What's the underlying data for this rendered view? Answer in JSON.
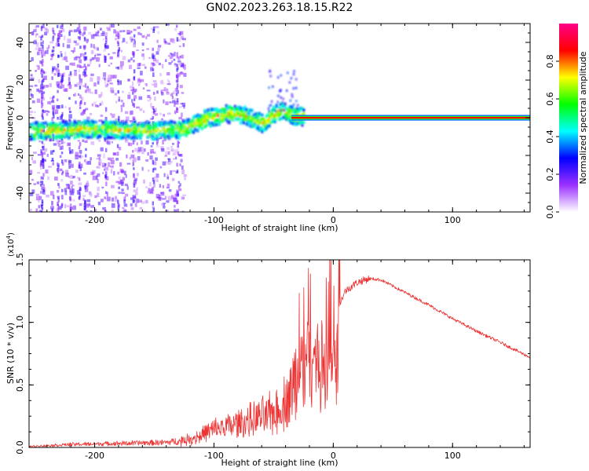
{
  "figure_title": "GN02.2023.263.18.15.R22",
  "chart_data": [
    {
      "type": "heatmap",
      "title": "GN02.2023.263.18.15.R22",
      "xlabel": "Height of straight line (km)",
      "ylabel": "Frequency (Hz)",
      "xlim": [
        -255,
        165
      ],
      "ylim": [
        -50,
        50
      ],
      "x_ticks": [
        -200,
        -100,
        0,
        100
      ],
      "x_tick_labels": [
        "-200",
        "-100",
        "0",
        "100"
      ],
      "y_ticks": [
        -40,
        -20,
        0,
        20,
        40
      ],
      "y_tick_labels": [
        "-40",
        "-20",
        "0",
        "20",
        "40"
      ],
      "colorbar": {
        "label": "Normalized spectral amplitude",
        "range": [
          0,
          1
        ],
        "ticks": [
          0.0,
          0.2,
          0.4,
          0.6,
          0.8
        ],
        "tick_labels": [
          "0.0",
          "0.2",
          "0.4",
          "0.6",
          "0.8"
        ],
        "colors": [
          "#ffffff",
          "#9b30ff",
          "#0000ff",
          "#00ffff",
          "#00ff00",
          "#ffff00",
          "#ff0000",
          "#ff0088"
        ]
      },
      "ridge": {
        "x": [
          -255,
          -200,
          -150,
          -125,
          -110,
          -90,
          -75,
          -60,
          -45,
          -35,
          -20,
          0,
          165
        ],
        "frequency_hz": [
          -7,
          -6,
          -7,
          -6,
          -1,
          2,
          1,
          -3,
          4,
          1,
          0,
          0,
          0
        ]
      }
    },
    {
      "type": "line",
      "title": "",
      "xlabel": "Height of straight line (km)",
      "ylabel": "SNR (10 * v/v)",
      "scale_label": "(x10",
      "scale_exponent": "4",
      "scale_suffix": ")",
      "xlim": [
        -255,
        165
      ],
      "ylim": [
        0,
        1.5
      ],
      "x_ticks": [
        -200,
        -100,
        0,
        100
      ],
      "x_tick_labels": [
        "-200",
        "-100",
        "0",
        "100"
      ],
      "y_ticks": [
        0.0,
        0.5,
        1.0,
        1.5
      ],
      "y_tick_labels": [
        "0.0",
        "0.5",
        "1.0",
        "1.5"
      ],
      "series": [
        {
          "name": "SNR",
          "color": "#ee3333",
          "x": [
            -255,
            -220,
            -180,
            -140,
            -120,
            -100,
            -85,
            -70,
            -55,
            -45,
            -35,
            -28,
            -22,
            -16,
            -10,
            -5,
            0,
            5,
            10,
            20,
            30,
            40,
            60,
            80,
            100,
            120,
            140,
            165
          ],
          "y": [
            0.01,
            0.03,
            0.04,
            0.05,
            0.08,
            0.18,
            0.22,
            0.27,
            0.32,
            0.38,
            0.55,
            0.75,
            0.85,
            0.95,
            0.7,
            0.9,
            1.05,
            1.15,
            1.25,
            1.32,
            1.35,
            1.34,
            1.24,
            1.14,
            1.03,
            0.93,
            0.84,
            0.72
          ]
        }
      ]
    }
  ]
}
